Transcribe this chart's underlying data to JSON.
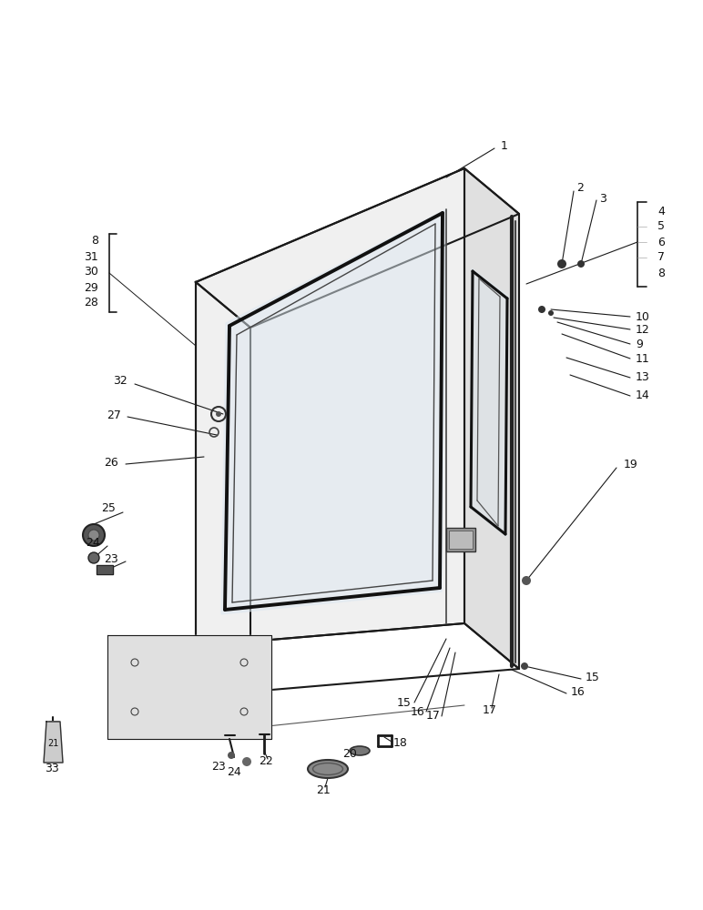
{
  "background_color": "#ffffff",
  "figsize": [
    7.72,
    10.0
  ],
  "dpi": 100,
  "line_color": "#1a1a1a"
}
